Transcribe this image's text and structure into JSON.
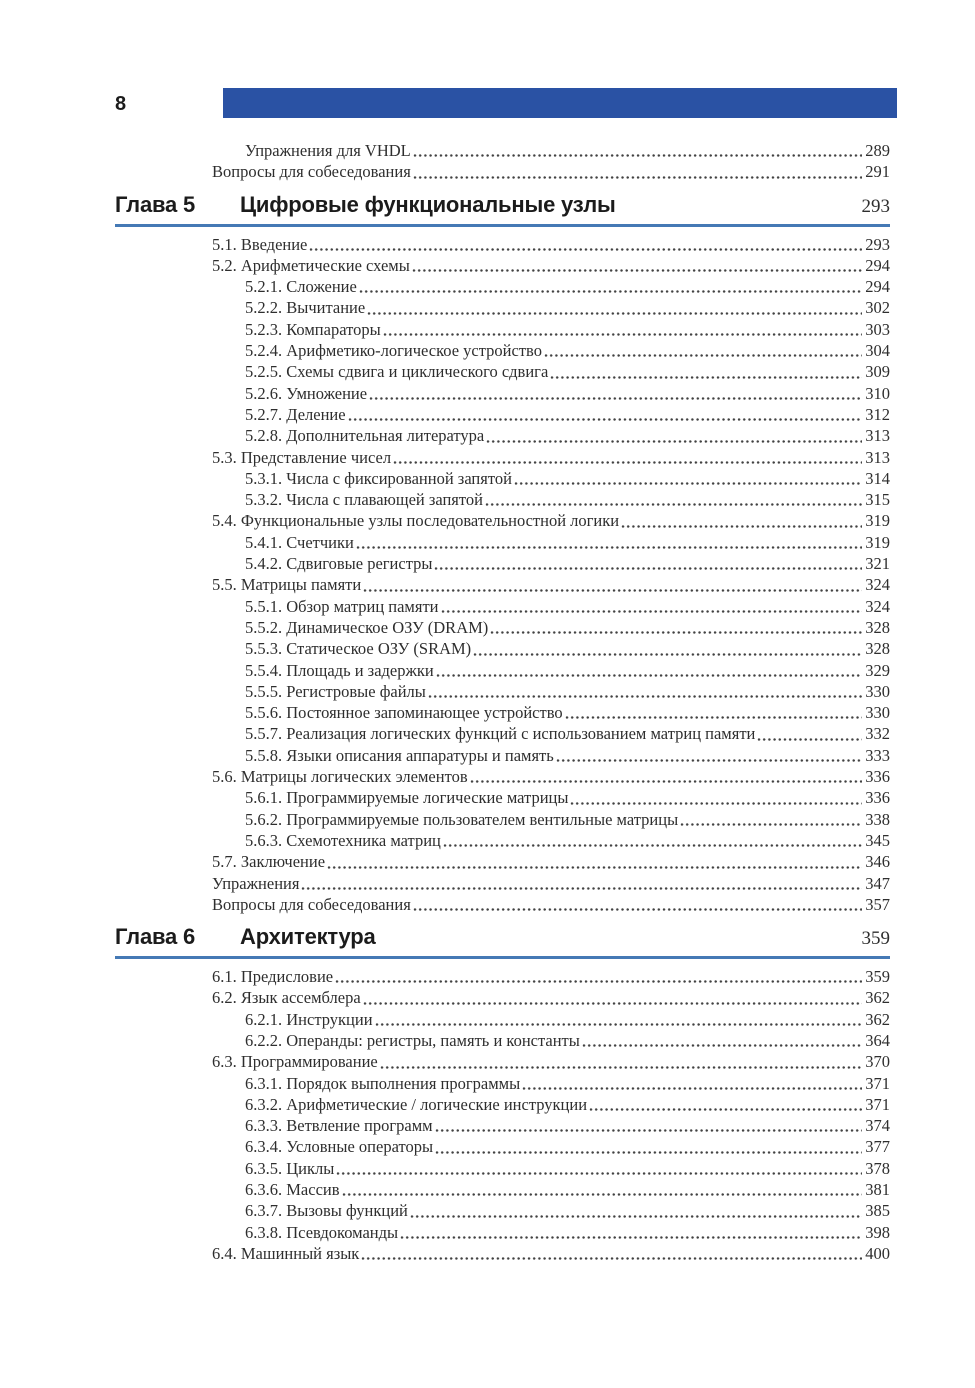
{
  "page": {
    "number": "8"
  },
  "colors": {
    "header_bar": "#2a52a4",
    "chapter_rule": "#4579b5"
  },
  "toc": {
    "leading_entries": [
      {
        "level": 2,
        "label": "Упражнения для VHDL",
        "page": "289"
      },
      {
        "level": 1,
        "label": "Вопросы для собеседования",
        "page": "291"
      }
    ],
    "chapters": [
      {
        "label": "Глава 5",
        "title": "Цифровые функциональные узлы",
        "page": "293",
        "entries": [
          {
            "level": 1,
            "label": "5.1. Введение",
            "page": "293"
          },
          {
            "level": 1,
            "label": "5.2. Арифметические схемы",
            "page": "294"
          },
          {
            "level": 2,
            "label": "5.2.1. Сложение",
            "page": "294"
          },
          {
            "level": 2,
            "label": "5.2.2. Вычитание",
            "page": "302"
          },
          {
            "level": 2,
            "label": "5.2.3. Компараторы",
            "page": "303"
          },
          {
            "level": 2,
            "label": "5.2.4. Арифметико-логическое устройство",
            "page": "304"
          },
          {
            "level": 2,
            "label": "5.2.5. Схемы сдвига и циклического сдвига",
            "page": "309"
          },
          {
            "level": 2,
            "label": "5.2.6. Умножение",
            "page": "310"
          },
          {
            "level": 2,
            "label": "5.2.7. Деление",
            "page": "312"
          },
          {
            "level": 2,
            "label": "5.2.8. Дополнительная литература",
            "page": "313"
          },
          {
            "level": 1,
            "label": "5.3. Представление чисел",
            "page": "313"
          },
          {
            "level": 2,
            "label": "5.3.1. Числа с фиксированной запятой",
            "page": "314"
          },
          {
            "level": 2,
            "label": "5.3.2. Числа с плавающей запятой",
            "page": "315"
          },
          {
            "level": 1,
            "label": "5.4. Функциональные узлы последовательностной логики",
            "page": "319"
          },
          {
            "level": 2,
            "label": "5.4.1. Счетчики",
            "page": "319"
          },
          {
            "level": 2,
            "label": "5.4.2. Сдвиговые регистры",
            "page": "321"
          },
          {
            "level": 1,
            "label": "5.5. Матрицы памяти",
            "page": "324"
          },
          {
            "level": 2,
            "label": "5.5.1. Обзор матриц памяти",
            "page": "324"
          },
          {
            "level": 2,
            "label": "5.5.2. Динамическое ОЗУ (DRAM)",
            "page": "328"
          },
          {
            "level": 2,
            "label": "5.5.3. Статическое ОЗУ (SRAM)",
            "page": "328"
          },
          {
            "level": 2,
            "label": "5.5.4. Площадь и задержки",
            "page": "329"
          },
          {
            "level": 2,
            "label": "5.5.5. Регистровые файлы",
            "page": "330"
          },
          {
            "level": 2,
            "label": "5.5.6. Постоянное запоминающее устройство",
            "page": "330"
          },
          {
            "level": 2,
            "label": "5.5.7. Реализация логических функций с использованием матриц памяти",
            "page": "332"
          },
          {
            "level": 2,
            "label": "5.5.8. Языки описания аппаратуры и память",
            "page": "333"
          },
          {
            "level": 1,
            "label": "5.6. Матрицы логических элементов",
            "page": "336"
          },
          {
            "level": 2,
            "label": "5.6.1. Программируемые логические матрицы",
            "page": "336"
          },
          {
            "level": 2,
            "label": "5.6.2. Программируемые пользователем вентильные матрицы",
            "page": "338"
          },
          {
            "level": 2,
            "label": "5.6.3. Схемотехника матриц",
            "page": "345"
          },
          {
            "level": 1,
            "label": "5.7. Заключение",
            "page": "346"
          },
          {
            "level": 1,
            "label": "Упражнения",
            "page": "347"
          },
          {
            "level": 1,
            "label": "Вопросы для собеседования",
            "page": "357"
          }
        ]
      },
      {
        "label": "Глава 6",
        "title": "Архитектура",
        "page": "359",
        "entries": [
          {
            "level": 1,
            "label": "6.1. Предисловие",
            "page": "359"
          },
          {
            "level": 1,
            "label": "6.2. Язык ассемблера",
            "page": "362"
          },
          {
            "level": 2,
            "label": "6.2.1. Инструкции",
            "page": "362"
          },
          {
            "level": 2,
            "label": "6.2.2. Операнды: регистры, память и константы",
            "page": "364"
          },
          {
            "level": 1,
            "label": "6.3. Программирование",
            "page": "370"
          },
          {
            "level": 2,
            "label": "6.3.1. Порядок выполнения программы",
            "page": "371"
          },
          {
            "level": 2,
            "label": "6.3.2. Арифметические / логические инструкции",
            "page": "371"
          },
          {
            "level": 2,
            "label": "6.3.3. Ветвление программ",
            "page": "374"
          },
          {
            "level": 2,
            "label": "6.3.4. Условные операторы",
            "page": "377"
          },
          {
            "level": 2,
            "label": "6.3.5. Циклы",
            "page": "378"
          },
          {
            "level": 2,
            "label": "6.3.6. Массив",
            "page": "381"
          },
          {
            "level": 2,
            "label": "6.3.7. Вызовы функций",
            "page": "385"
          },
          {
            "level": 2,
            "label": "6.3.8. Псевдокоманды",
            "page": "398"
          },
          {
            "level": 1,
            "label": "6.4. Машинный язык",
            "page": "400"
          }
        ]
      }
    ]
  }
}
